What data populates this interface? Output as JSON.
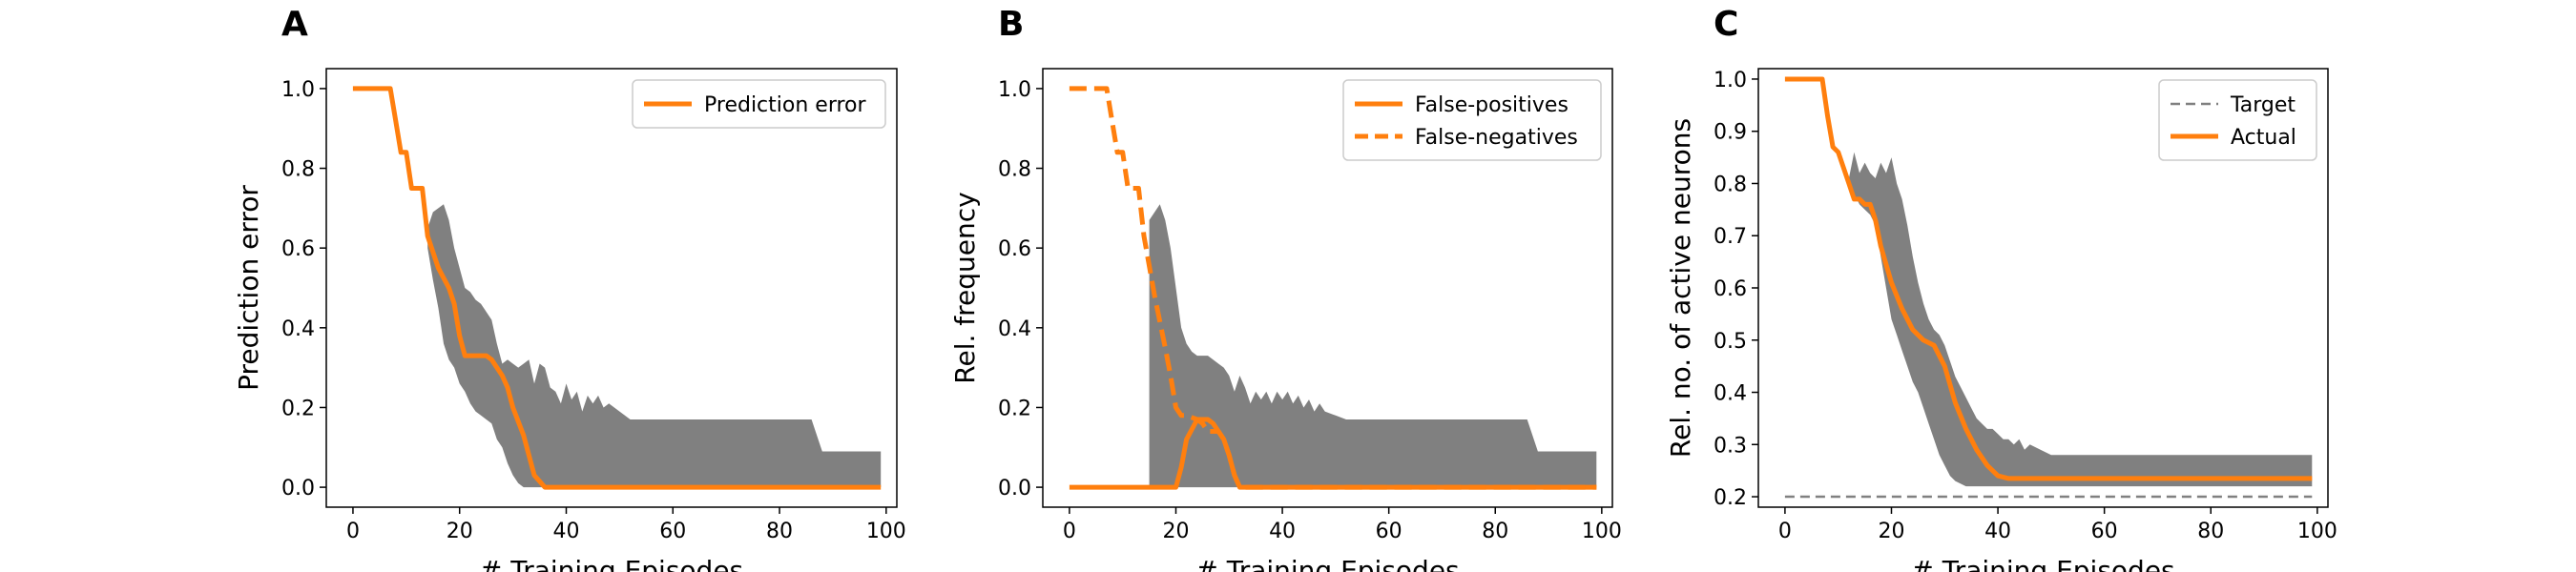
{
  "chart_data": [
    {
      "type": "line",
      "panel_letter": "A",
      "xlabel": "# Training Episodes",
      "ylabel": "Prediction error",
      "xlim": [
        -5,
        102
      ],
      "ylim": [
        -0.05,
        1.05
      ],
      "x_ticks": [
        "0",
        "20",
        "40",
        "60",
        "80",
        "100"
      ],
      "y_ticks": [
        "0.0",
        "0.2",
        "0.4",
        "0.6",
        "0.8",
        "1.0"
      ],
      "legend": {
        "position": "top-right",
        "entries": [
          "Prediction error"
        ]
      },
      "series": [
        {
          "name": "Prediction error",
          "color": "#ff7f0e",
          "style": "solid",
          "x": [
            0,
            7,
            8,
            9,
            10,
            11,
            13,
            14,
            16,
            18,
            19,
            20,
            21,
            22,
            25,
            26,
            28,
            29,
            30,
            32,
            33,
            34,
            36,
            40,
            60,
            80,
            99
          ],
          "y": [
            1.0,
            1.0,
            0.92,
            0.84,
            0.84,
            0.75,
            0.75,
            0.63,
            0.55,
            0.5,
            0.46,
            0.38,
            0.33,
            0.33,
            0.33,
            0.32,
            0.28,
            0.25,
            0.2,
            0.13,
            0.08,
            0.03,
            0.0,
            0.0,
            0.0,
            0.0,
            0.0
          ]
        }
      ],
      "band": {
        "color": "#808080",
        "x": [
          14,
          15,
          16,
          17,
          18,
          19,
          20,
          21,
          22,
          23,
          24,
          25,
          26,
          27,
          28,
          29,
          30,
          31,
          32,
          33,
          34,
          35,
          36,
          37,
          38,
          39,
          40,
          41,
          42,
          43,
          44,
          45,
          46,
          47,
          48,
          50,
          52,
          60,
          70,
          80,
          86,
          88,
          99
        ],
        "upper": [
          0.65,
          0.69,
          0.7,
          0.71,
          0.67,
          0.6,
          0.55,
          0.5,
          0.49,
          0.47,
          0.46,
          0.44,
          0.42,
          0.36,
          0.31,
          0.32,
          0.31,
          0.3,
          0.31,
          0.32,
          0.26,
          0.31,
          0.3,
          0.25,
          0.24,
          0.21,
          0.26,
          0.22,
          0.24,
          0.19,
          0.23,
          0.21,
          0.23,
          0.2,
          0.21,
          0.19,
          0.17,
          0.17,
          0.17,
          0.17,
          0.17,
          0.09,
          0.09
        ],
        "lower": [
          0.6,
          0.52,
          0.45,
          0.36,
          0.32,
          0.3,
          0.26,
          0.24,
          0.21,
          0.19,
          0.18,
          0.17,
          0.16,
          0.12,
          0.1,
          0.06,
          0.03,
          0.01,
          0.0,
          0.0,
          0.0,
          0.0,
          0.0,
          0.0,
          0.0,
          0.0,
          0.0,
          0.0,
          0.0,
          0.0,
          0.0,
          0.0,
          0.0,
          0.0,
          0.0,
          0.0,
          0.0,
          0.0,
          0.0,
          0.0,
          0.0,
          0.0,
          0.0
        ]
      }
    },
    {
      "type": "line",
      "panel_letter": "B",
      "xlabel": "# Training Episodes",
      "ylabel": "Rel. frequency",
      "xlim": [
        -5,
        102
      ],
      "ylim": [
        -0.05,
        1.05
      ],
      "x_ticks": [
        "0",
        "20",
        "40",
        "60",
        "80",
        "100"
      ],
      "y_ticks": [
        "0.0",
        "0.2",
        "0.4",
        "0.6",
        "0.8",
        "1.0"
      ],
      "legend": {
        "position": "top-right",
        "entries": [
          "False-positives",
          "False-negatives"
        ]
      },
      "series": [
        {
          "name": "False-positives",
          "color": "#ff7f0e",
          "style": "solid",
          "x": [
            0,
            20,
            21,
            22,
            24,
            25,
            26,
            27,
            28,
            29,
            30,
            31,
            32,
            33,
            40,
            60,
            80,
            99
          ],
          "y": [
            0.0,
            0.0,
            0.05,
            0.12,
            0.17,
            0.17,
            0.17,
            0.16,
            0.14,
            0.12,
            0.08,
            0.03,
            0.0,
            0.0,
            0.0,
            0.0,
            0.0,
            0.0
          ]
        },
        {
          "name": "False-negatives",
          "color": "#ff7f0e",
          "style": "dashed",
          "x": [
            0,
            7,
            8,
            9,
            10,
            11,
            13,
            14,
            16,
            18,
            19,
            20,
            21,
            22,
            24,
            25,
            26,
            27,
            28,
            29,
            30,
            31,
            32,
            33,
            40,
            60,
            80,
            99
          ],
          "y": [
            1.0,
            1.0,
            0.92,
            0.84,
            0.84,
            0.75,
            0.75,
            0.63,
            0.48,
            0.35,
            0.28,
            0.2,
            0.18,
            0.18,
            0.17,
            0.16,
            0.14,
            0.14,
            0.14,
            0.12,
            0.08,
            0.03,
            0.0,
            0.0,
            0.0,
            0.0,
            0.0,
            0.0
          ]
        }
      ],
      "band": {
        "color": "#808080",
        "x": [
          15,
          16,
          17,
          18,
          19,
          20,
          21,
          22,
          23,
          24,
          25,
          26,
          27,
          28,
          29,
          30,
          31,
          32,
          33,
          34,
          35,
          36,
          37,
          38,
          39,
          40,
          41,
          42,
          43,
          44,
          45,
          46,
          47,
          48,
          50,
          52,
          60,
          70,
          80,
          86,
          88,
          99
        ],
        "upper": [
          0.67,
          0.69,
          0.71,
          0.67,
          0.6,
          0.5,
          0.4,
          0.36,
          0.34,
          0.33,
          0.33,
          0.33,
          0.32,
          0.31,
          0.3,
          0.28,
          0.24,
          0.28,
          0.25,
          0.21,
          0.24,
          0.22,
          0.24,
          0.21,
          0.24,
          0.22,
          0.24,
          0.21,
          0.23,
          0.2,
          0.22,
          0.19,
          0.21,
          0.19,
          0.18,
          0.17,
          0.17,
          0.17,
          0.17,
          0.17,
          0.09,
          0.09
        ],
        "lower": [
          0.0,
          0.0,
          0.0,
          0.0,
          0.0,
          0.0,
          0.0,
          0.0,
          0.0,
          0.0,
          0.0,
          0.0,
          0.0,
          0.0,
          0.0,
          0.0,
          0.0,
          0.0,
          0.0,
          0.0,
          0.0,
          0.0,
          0.0,
          0.0,
          0.0,
          0.0,
          0.0,
          0.0,
          0.0,
          0.0,
          0.0,
          0.0,
          0.0,
          0.0,
          0.0,
          0.0,
          0.0,
          0.0,
          0.0,
          0.0,
          0.0,
          0.0
        ]
      }
    },
    {
      "type": "line",
      "panel_letter": "C",
      "xlabel": "# Training Episodes",
      "ylabel": "Rel. no. of active neurons",
      "xlim": [
        -5,
        102
      ],
      "ylim": [
        0.18,
        1.02
      ],
      "x_ticks": [
        "0",
        "20",
        "40",
        "60",
        "80",
        "100"
      ],
      "y_ticks": [
        "0.2",
        "0.3",
        "0.4",
        "0.5",
        "0.6",
        "0.7",
        "0.8",
        "0.9",
        "1.0"
      ],
      "legend": {
        "position": "top-right",
        "entries": [
          "Target",
          "Actual"
        ]
      },
      "series": [
        {
          "name": "Target",
          "color": "#808080",
          "style": "dashed",
          "x": [
            0,
            99
          ],
          "y": [
            0.2,
            0.2
          ]
        },
        {
          "name": "Actual",
          "color": "#ff7f0e",
          "style": "solid",
          "x": [
            0,
            7,
            8,
            9,
            10,
            11,
            12,
            13,
            14,
            15,
            16,
            17,
            18,
            20,
            22,
            24,
            26,
            28,
            30,
            32,
            34,
            36,
            38,
            40,
            42,
            44,
            60,
            80,
            99
          ],
          "y": [
            1.0,
            1.0,
            0.93,
            0.87,
            0.86,
            0.83,
            0.8,
            0.77,
            0.77,
            0.76,
            0.76,
            0.73,
            0.68,
            0.61,
            0.56,
            0.52,
            0.5,
            0.49,
            0.45,
            0.38,
            0.33,
            0.29,
            0.26,
            0.24,
            0.235,
            0.235,
            0.235,
            0.235,
            0.235
          ]
        }
      ],
      "band": {
        "color": "#808080",
        "x": [
          12,
          13,
          14,
          15,
          16,
          17,
          18,
          19,
          20,
          21,
          22,
          23,
          24,
          25,
          26,
          27,
          28,
          29,
          30,
          31,
          32,
          33,
          34,
          35,
          36,
          37,
          38,
          39,
          40,
          41,
          42,
          43,
          44,
          45,
          46,
          48,
          50,
          52,
          60,
          80,
          99
        ],
        "upper": [
          0.81,
          0.86,
          0.82,
          0.84,
          0.82,
          0.81,
          0.84,
          0.82,
          0.85,
          0.8,
          0.77,
          0.72,
          0.66,
          0.61,
          0.57,
          0.54,
          0.52,
          0.51,
          0.49,
          0.46,
          0.43,
          0.41,
          0.39,
          0.37,
          0.35,
          0.34,
          0.33,
          0.33,
          0.32,
          0.31,
          0.31,
          0.3,
          0.31,
          0.29,
          0.3,
          0.29,
          0.28,
          0.28,
          0.28,
          0.28,
          0.28
        ],
        "lower": [
          0.8,
          0.78,
          0.76,
          0.75,
          0.74,
          0.72,
          0.66,
          0.6,
          0.54,
          0.51,
          0.48,
          0.45,
          0.42,
          0.4,
          0.37,
          0.34,
          0.31,
          0.28,
          0.26,
          0.24,
          0.23,
          0.225,
          0.22,
          0.22,
          0.22,
          0.22,
          0.22,
          0.22,
          0.22,
          0.22,
          0.22,
          0.22,
          0.22,
          0.22,
          0.22,
          0.22,
          0.22,
          0.22,
          0.22,
          0.22,
          0.22
        ]
      }
    }
  ]
}
